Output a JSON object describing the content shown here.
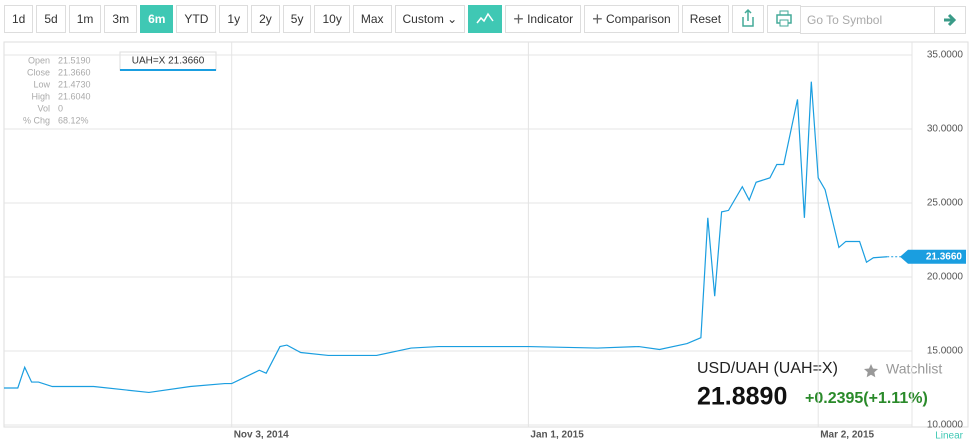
{
  "toolbar": {
    "ranges": [
      "1d",
      "5d",
      "1m",
      "3m",
      "6m",
      "YTD",
      "1y",
      "2y",
      "5y",
      "10y",
      "Max"
    ],
    "active": 4,
    "custom": "Custom",
    "indicator": "Indicator",
    "comparison": "Comparison",
    "reset": "Reset",
    "search_placeholder": "Go To Symbol"
  },
  "ohlc": {
    "labels": [
      "Open",
      "Close",
      "Low",
      "High",
      "Vol",
      "% Chg"
    ],
    "values": [
      "21.5190",
      "21.3660",
      "21.4730",
      "21.6040",
      "0",
      "68.12%"
    ]
  },
  "tooltip": "UAH=X 21.3660",
  "quote": {
    "name": "USD/UAH (UAH=X)",
    "watchlist": "Watchlist",
    "price": "21.8890",
    "change": "+0.2395(+1.11%)"
  },
  "scale_label": "Linear",
  "chart_data": {
    "type": "line",
    "color": "#1a9ee0",
    "grid": true,
    "x": [
      "2014-09-17",
      "2014-09-19",
      "2014-09-22",
      "2014-09-23",
      "2014-09-24",
      "2014-09-26",
      "2014-10-06",
      "2014-10-16",
      "2014-10-24",
      "2014-10-31",
      "2014-11-03",
      "2014-11-07",
      "2014-11-10",
      "2014-11-12",
      "2014-11-13",
      "2014-11-17",
      "2014-11-21",
      "2014-12-02",
      "2014-12-09",
      "2014-12-15",
      "2014-12-23",
      "2015-01-01",
      "2015-01-15",
      "2015-01-23",
      "2015-01-28",
      "2015-02-03",
      "2015-02-05",
      "2015-02-06",
      "2015-02-09",
      "2015-02-10",
      "2015-02-11",
      "2015-02-13",
      "2015-02-16",
      "2015-02-17",
      "2015-02-19",
      "2015-02-20",
      "2015-02-23",
      "2015-02-25",
      "2015-02-26",
      "2015-02-27",
      "2015-03-02",
      "2015-03-03",
      "2015-03-05",
      "2015-03-06",
      "2015-03-10",
      "2015-03-11",
      "2015-03-12",
      "2015-03-16"
    ],
    "values": [
      12.5,
      12.5,
      13.9,
      12.9,
      12.9,
      12.6,
      12.6,
      12.2,
      12.6,
      12.8,
      12.8,
      13.7,
      13.5,
      15.3,
      15.4,
      14.9,
      14.7,
      14.7,
      15.2,
      15.3,
      15.3,
      15.3,
      15.2,
      15.3,
      15.1,
      15.5,
      15.9,
      24.0,
      18.7,
      24.4,
      24.5,
      26.1,
      25.2,
      26.4,
      26.7,
      27.6,
      27.6,
      32.0,
      24.0,
      33.2,
      26.7,
      25.9,
      22.0,
      22.4,
      22.4,
      21.0,
      21.3,
      21.366
    ],
    "xlim": [
      "2014-09-17",
      "2015-03-17"
    ],
    "xticks": [
      {
        "value": "2014-11-03",
        "label": "Nov 3, 2014"
      },
      {
        "value": "2015-01-01",
        "label": "Jan 1, 2015"
      },
      {
        "value": "2015-03-02",
        "label": "Mar 2, 2015"
      }
    ],
    "ylim": [
      10,
      35
    ],
    "yticks": [
      {
        "value": 10,
        "label": "10.0000"
      },
      {
        "value": 15,
        "label": "15.0000"
      },
      {
        "value": 20,
        "label": "20.0000"
      },
      {
        "value": 25,
        "label": "25.0000"
      },
      {
        "value": 30,
        "label": "30.0000"
      },
      {
        "value": 35,
        "label": "35.0000"
      }
    ],
    "last_price": {
      "value": 21.366,
      "label": "21.3660"
    }
  }
}
